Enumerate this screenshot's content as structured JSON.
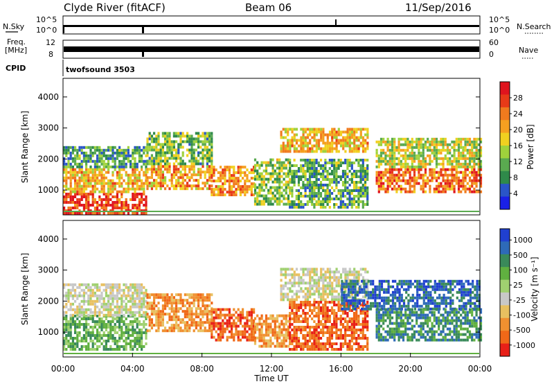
{
  "header": {
    "station": "Clyde River (fitACF)",
    "beam": "Beam 06",
    "date": "11/Sep/2016"
  },
  "top_panels": {
    "nsky_label": "N.Sky",
    "nsky_ticks": [
      "10^5",
      "10^0"
    ],
    "nsearch_label": "N.Search",
    "nsearch_ticks": [
      "10^5",
      "10^0"
    ],
    "freq_label_line1": "Freq.",
    "freq_label_line2": "[MHz]",
    "freq_ticks": [
      "12",
      "8"
    ],
    "nave_label": "Nave",
    "nave_ticks": [
      "60",
      "0"
    ],
    "cpid_label": "CPID",
    "cpid_value": "twofsound 3503"
  },
  "colors": {
    "power_scale": [
      "#1a20e6",
      "#2a55c8",
      "#2f8a4a",
      "#5aaa50",
      "#9fd23c",
      "#f0d020",
      "#f5a020",
      "#f07a1e",
      "#e83a18",
      "#e0141e"
    ],
    "velocity_scale": [
      "#2040d0",
      "#2e6ab8",
      "#3a8a5a",
      "#60b040",
      "#a0d070",
      "#c8c8c8",
      "#e8c060",
      "#f09030",
      "#f06818",
      "#e82018"
    ],
    "noise_gray": "#c8c8c8"
  },
  "chart_data": [
    {
      "type": "heatmap",
      "name": "power",
      "xlabel": "Time UT",
      "ylabel": "Slant Range [km]",
      "ylim": [
        200,
        4600
      ],
      "xlim": [
        "00:00",
        "24:00"
      ],
      "yticks": [
        1000,
        2000,
        3000,
        4000
      ],
      "colorbar": {
        "label": "Power [dB]",
        "ticks": [
          4,
          8,
          12,
          16,
          20,
          24,
          28
        ],
        "range": [
          0,
          32
        ]
      },
      "echo_regions": [
        {
          "t_start": 0.0,
          "t_end": 4.8,
          "r_min": 200,
          "r_max": 900,
          "level": 29
        },
        {
          "t_start": 0.0,
          "t_end": 4.8,
          "r_min": 900,
          "r_max": 1700,
          "level": 20
        },
        {
          "t_start": 0.0,
          "t_end": 4.8,
          "r_min": 1700,
          "r_max": 2400,
          "level": 9
        },
        {
          "t_start": 4.8,
          "t_end": 8.5,
          "r_min": 1000,
          "r_max": 1800,
          "level": 22
        },
        {
          "t_start": 4.8,
          "t_end": 8.5,
          "r_min": 1800,
          "r_max": 2800,
          "level": 12
        },
        {
          "t_start": 8.5,
          "t_end": 11.0,
          "r_min": 800,
          "r_max": 1700,
          "level": 23
        },
        {
          "t_start": 11.0,
          "t_end": 13.0,
          "r_min": 500,
          "r_max": 2000,
          "level": 13
        },
        {
          "t_start": 12.5,
          "t_end": 17.5,
          "r_min": 2200,
          "r_max": 3000,
          "level": 20
        },
        {
          "t_start": 13.0,
          "t_end": 17.5,
          "r_min": 400,
          "r_max": 2000,
          "level": 10
        },
        {
          "t_start": 18.0,
          "t_end": 24.0,
          "r_min": 900,
          "r_max": 1700,
          "level": 25
        },
        {
          "t_start": 18.0,
          "t_end": 24.0,
          "r_min": 1700,
          "r_max": 2600,
          "level": 16
        }
      ]
    },
    {
      "type": "heatmap",
      "name": "velocity",
      "xlabel": "Time UT",
      "ylabel": "Slant Range [km]",
      "ylim": [
        200,
        4600
      ],
      "xlim": [
        "00:00",
        "24:00"
      ],
      "xticks": [
        "00:00",
        "04:00",
        "08:00",
        "12:00",
        "16:00",
        "20:00",
        "00:00"
      ],
      "yticks": [
        1000,
        2000,
        3000,
        4000
      ],
      "colorbar": {
        "label": "Velocity [m s⁻¹]",
        "ticks": [
          "1000",
          "500",
          "100",
          "25",
          "-25",
          "-100",
          "-500",
          "-1000"
        ]
      },
      "echo_regions": [
        {
          "t_start": 0.0,
          "t_end": 4.8,
          "r_min": 400,
          "r_max": 1500,
          "level": 3
        },
        {
          "t_start": 0.0,
          "t_end": 4.8,
          "r_min": 1500,
          "r_max": 2500,
          "level": 5
        },
        {
          "t_start": 4.8,
          "t_end": 8.5,
          "r_min": 1000,
          "r_max": 2200,
          "level": 7
        },
        {
          "t_start": 8.5,
          "t_end": 11.0,
          "r_min": 700,
          "r_max": 1700,
          "level": 8
        },
        {
          "t_start": 11.0,
          "t_end": 13.0,
          "r_min": 500,
          "r_max": 1500,
          "level": 7
        },
        {
          "t_start": 12.5,
          "t_end": 17.5,
          "r_min": 2000,
          "r_max": 3000,
          "level": 5
        },
        {
          "t_start": 13.0,
          "t_end": 17.5,
          "r_min": 400,
          "r_max": 2000,
          "level": 8
        },
        {
          "t_start": 16.0,
          "t_end": 24.0,
          "r_min": 1700,
          "r_max": 2600,
          "level": 1
        },
        {
          "t_start": 18.0,
          "t_end": 24.0,
          "r_min": 700,
          "r_max": 1700,
          "level": 2
        }
      ]
    }
  ]
}
